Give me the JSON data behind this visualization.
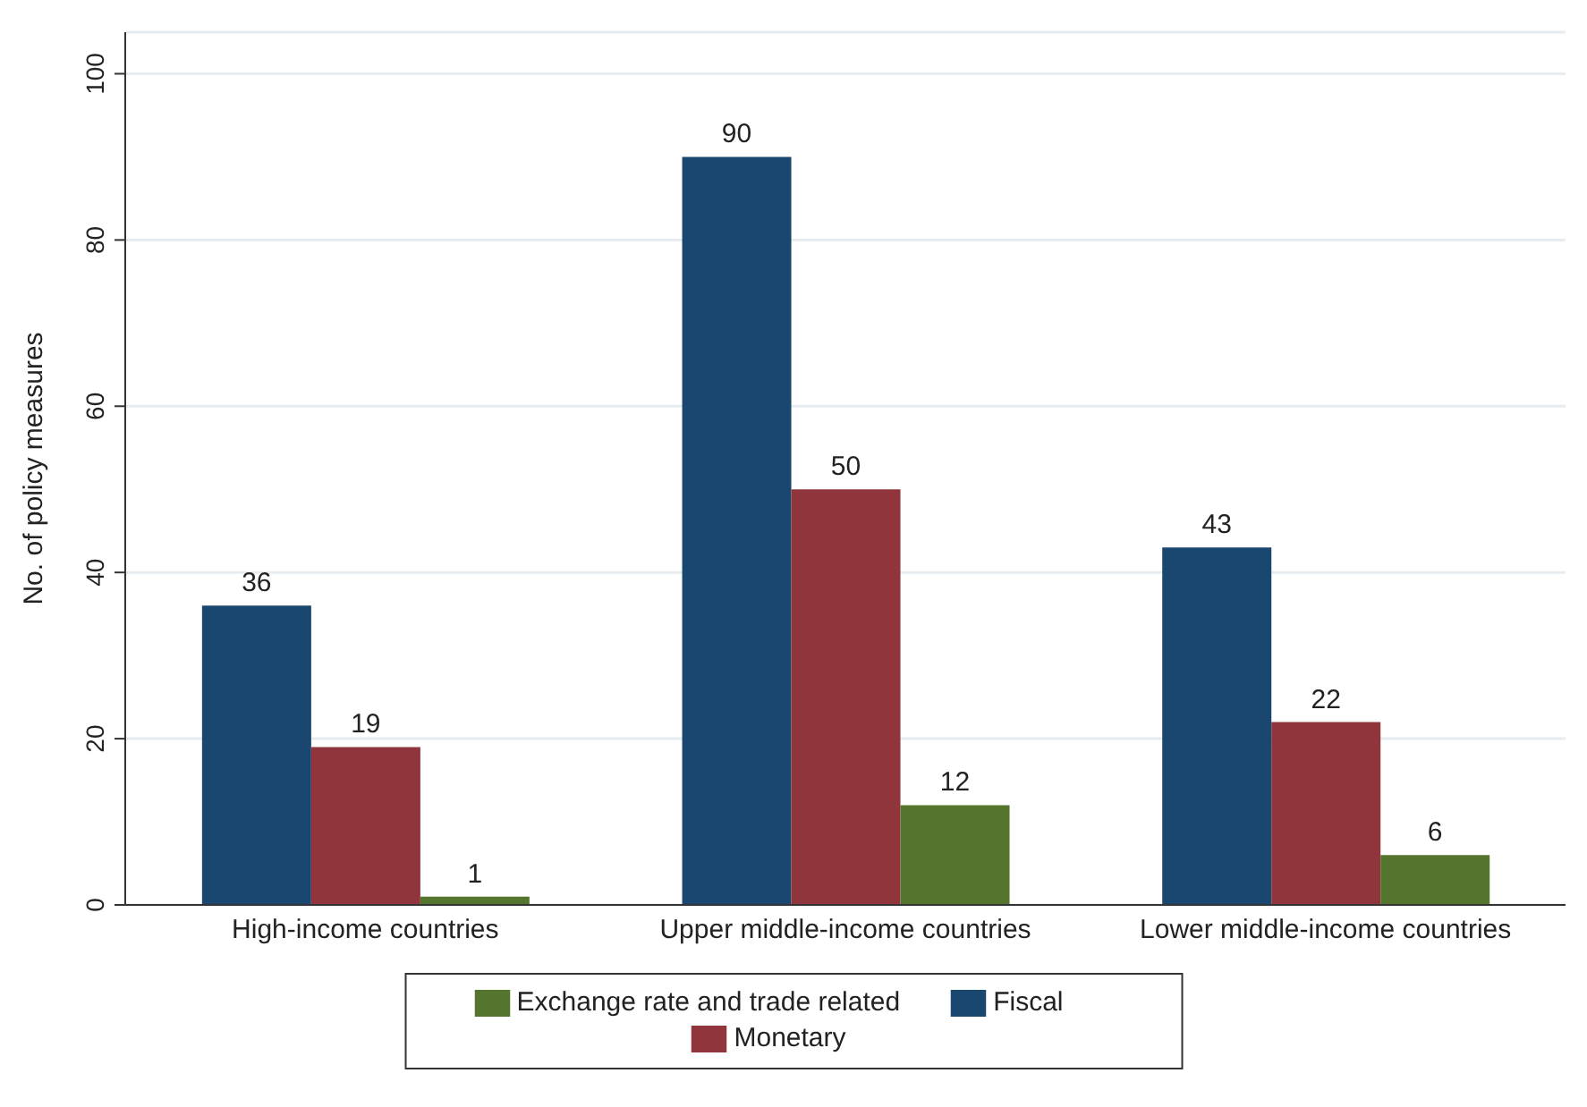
{
  "chart_data": {
    "type": "bar",
    "ylabel": "No. of policy measures",
    "categories": [
      "High-income countries",
      "Upper middle-income countries",
      "Lower middle-income countries"
    ],
    "series": [
      {
        "name": "Fiscal",
        "color": "#1a476f",
        "values": [
          36,
          90,
          43
        ]
      },
      {
        "name": "Monetary",
        "color": "#90353b",
        "values": [
          19,
          50,
          22
        ]
      },
      {
        "name": "Exchange rate and trade related",
        "color": "#55752f",
        "values": [
          1,
          12,
          6
        ]
      }
    ],
    "ylim": [
      0,
      105
    ],
    "yticks": [
      0,
      20,
      40,
      60,
      80,
      100
    ],
    "grid": "y",
    "legend": "bottom",
    "data_labels": true
  }
}
